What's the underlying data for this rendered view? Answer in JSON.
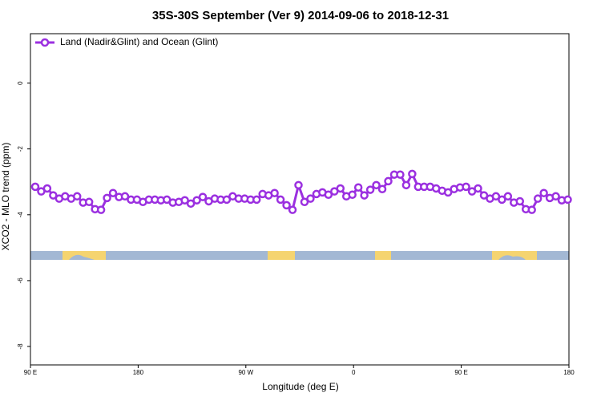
{
  "chart_data": {
    "type": "line",
    "title": "35S-30S September (Ver 9)   2014-09-06 to 2018-12-31",
    "x_label": "Longitude (deg E)",
    "y_label": "XCO2 - MLO trend (ppm)",
    "xlim": [
      90,
      540
    ],
    "ylim": [
      -8.56,
      1.5
    ],
    "xticks": [
      {
        "value": 90,
        "label": "90 E"
      },
      180,
      {
        "value": 270,
        "label": "90 W"
      },
      {
        "value": 360,
        "label": "0"
      },
      {
        "value": 450,
        "label": "90 E"
      },
      {
        "value": 540,
        "label": "180"
      }
    ],
    "yticks": [
      0,
      -2,
      -4,
      -6,
      -8
    ],
    "legend": "top-left",
    "series": [
      {
        "name": "Land (Nadir&Glint) and Ocean (Glint)",
        "color": "#9b30e0",
        "x": [
          94,
          99,
          104,
          109,
          114,
          119,
          124,
          129,
          134,
          139,
          144,
          149,
          154,
          159,
          164,
          169,
          174,
          179,
          184,
          189,
          194,
          199,
          204,
          209,
          214,
          219,
          224,
          229,
          234,
          239,
          244,
          249,
          254,
          259,
          264,
          269,
          274,
          279,
          284,
          289,
          294,
          299,
          304,
          309,
          314,
          319,
          324,
          329,
          334,
          339,
          344,
          349,
          354,
          359,
          364,
          369,
          374,
          379,
          384,
          389,
          394,
          399,
          404,
          409,
          414,
          419,
          424,
          429,
          434,
          439,
          444,
          449,
          454,
          459,
          464,
          469,
          474,
          479,
          484,
          489,
          494,
          499,
          504,
          509,
          514,
          519,
          524,
          529,
          534,
          539
        ],
        "values": [
          -3.15,
          -3.29,
          -3.2,
          -3.41,
          -3.51,
          -3.44,
          -3.51,
          -3.44,
          -3.63,
          -3.61,
          -3.83,
          -3.85,
          -3.49,
          -3.34,
          -3.46,
          -3.44,
          -3.54,
          -3.54,
          -3.61,
          -3.54,
          -3.54,
          -3.56,
          -3.54,
          -3.63,
          -3.61,
          -3.56,
          -3.66,
          -3.56,
          -3.46,
          -3.59,
          -3.51,
          -3.54,
          -3.54,
          -3.44,
          -3.51,
          -3.51,
          -3.54,
          -3.54,
          -3.37,
          -3.41,
          -3.34,
          -3.54,
          -3.71,
          -3.85,
          -3.1,
          -3.61,
          -3.51,
          -3.37,
          -3.32,
          -3.39,
          -3.29,
          -3.2,
          -3.44,
          -3.39,
          -3.17,
          -3.41,
          -3.24,
          -3.1,
          -3.22,
          -2.98,
          -2.78,
          -2.78,
          -3.1,
          -2.76,
          -3.15,
          -3.15,
          -3.15,
          -3.2,
          -3.27,
          -3.32,
          -3.22,
          -3.17,
          -3.15,
          -3.29,
          -3.2,
          -3.41,
          -3.51,
          -3.44,
          -3.54,
          -3.44,
          -3.63,
          -3.59,
          -3.83,
          -3.85,
          -3.51,
          -3.34,
          -3.49,
          -3.44,
          -3.56,
          -3.54
        ]
      }
    ]
  }
}
